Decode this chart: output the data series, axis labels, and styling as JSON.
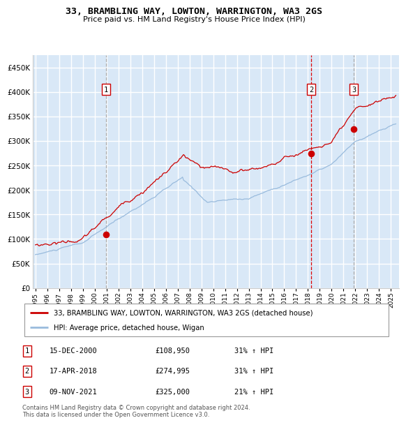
{
  "title": "33, BRAMBLING WAY, LOWTON, WARRINGTON, WA3 2GS",
  "subtitle": "Price paid vs. HM Land Registry's House Price Index (HPI)",
  "plot_bg": "#d9e8f7",
  "grid_color": "#ffffff",
  "red_line_color": "#cc0000",
  "blue_line_color": "#99bbdd",
  "purchase_points": [
    {
      "date_num": 2000.96,
      "price": 108950,
      "label": "1"
    },
    {
      "date_num": 2018.29,
      "price": 274995,
      "label": "2"
    },
    {
      "date_num": 2021.86,
      "price": 325000,
      "label": "3"
    }
  ],
  "purchase_dates_display": [
    "15-DEC-2000",
    "17-APR-2018",
    "09-NOV-2021"
  ],
  "purchase_prices_display": [
    "£108,950",
    "£274,995",
    "£325,000"
  ],
  "purchase_pcts": [
    "31% ↑ HPI",
    "31% ↑ HPI",
    "21% ↑ HPI"
  ],
  "vline_colors": [
    "#aaaaaa",
    "#dd0000",
    "#aaaaaa"
  ],
  "vline_ls": [
    "--",
    "--",
    "--"
  ],
  "legend_line1": "33, BRAMBLING WAY, LOWTON, WARRINGTON, WA3 2GS (detached house)",
  "legend_line2": "HPI: Average price, detached house, Wigan",
  "footnote": "Contains HM Land Registry data © Crown copyright and database right 2024.\nThis data is licensed under the Open Government Licence v3.0.",
  "ylim": [
    0,
    475000
  ],
  "yticks": [
    0,
    50000,
    100000,
    150000,
    200000,
    250000,
    300000,
    350000,
    400000,
    450000
  ],
  "xlim_start": 1994.8,
  "xlim_end": 2025.7,
  "xticks": [
    1995,
    1996,
    1997,
    1998,
    1999,
    2000,
    2001,
    2002,
    2003,
    2004,
    2005,
    2006,
    2007,
    2008,
    2009,
    2010,
    2011,
    2012,
    2013,
    2014,
    2015,
    2016,
    2017,
    2018,
    2019,
    2020,
    2021,
    2022,
    2023,
    2024,
    2025
  ]
}
